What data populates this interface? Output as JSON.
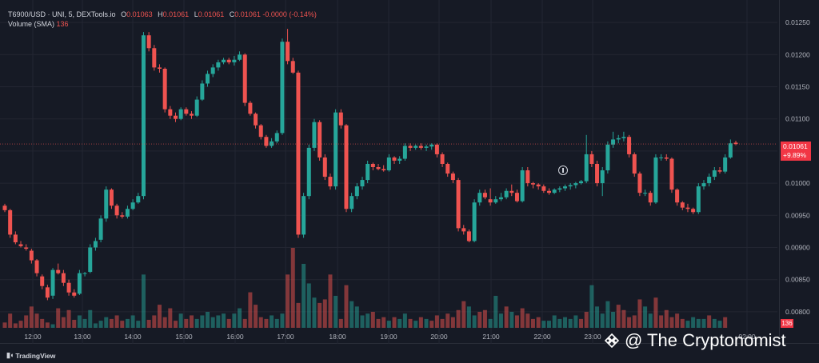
{
  "header": {
    "symbol": "T6900/USD · UNI, 5, DEXTools.io",
    "open_label": "O",
    "open": "0.01063",
    "high_label": "H",
    "high": "0.01061",
    "low_label": "L",
    "low": "0.01061",
    "close_label": "C",
    "close": "0.01061",
    "change": "-0.0000 (-0.14%)",
    "volume_label": "Volume (SMA)",
    "volume_value": "136"
  },
  "price_tag": {
    "price": "0.01061",
    "change": "+9.89%"
  },
  "volume_tag": "136",
  "branding": {
    "tradingview": "TradingView",
    "watermark": "@ The Cryptonomist"
  },
  "colors": {
    "background": "#161a25",
    "up": "#26a69a",
    "down": "#ef5350",
    "grid": "#232632",
    "axis_text": "#b2b5be"
  },
  "chart_data": {
    "type": "candlestick",
    "timeframe": "5",
    "x_ticks": [
      "12:00",
      "13:00",
      "14:00",
      "15:00",
      "16:00",
      "17:00",
      "18:00",
      "19:00",
      "20:00",
      "21:00",
      "22:00",
      "23:00",
      "02:00"
    ],
    "y_ticks": [
      "0.01250",
      "0.01200",
      "0.01150",
      "0.01100",
      "0.01050",
      "0.01000",
      "0.00950",
      "0.00900",
      "0.00850",
      "0.00800"
    ],
    "ylim": [
      0.00775,
      0.01275
    ],
    "last_price": 0.01061,
    "candles": [
      [
        0.00965,
        0.00968,
        0.00955,
        0.00958
      ],
      [
        0.00958,
        0.0096,
        0.00915,
        0.0092
      ],
      [
        0.0092,
        0.00925,
        0.00905,
        0.00908
      ],
      [
        0.00905,
        0.0091,
        0.009,
        0.00902
      ],
      [
        0.009,
        0.00905,
        0.00895,
        0.00898
      ],
      [
        0.00895,
        0.00898,
        0.00875,
        0.0088
      ],
      [
        0.0088,
        0.00882,
        0.00855,
        0.0086
      ],
      [
        0.00855,
        0.00858,
        0.00835,
        0.0084
      ],
      [
        0.00838,
        0.00842,
        0.00818,
        0.00822
      ],
      [
        0.00825,
        0.00868,
        0.0082,
        0.00865
      ],
      [
        0.00865,
        0.00875,
        0.00858,
        0.0086
      ],
      [
        0.0086,
        0.00865,
        0.0084,
        0.00845
      ],
      [
        0.00845,
        0.0085,
        0.00825,
        0.0083
      ],
      [
        0.0083,
        0.00835,
        0.00822,
        0.00825
      ],
      [
        0.00828,
        0.00865,
        0.00826,
        0.0086
      ],
      [
        0.0086,
        0.00862,
        0.00855,
        0.0086
      ],
      [
        0.00862,
        0.00905,
        0.0086,
        0.009
      ],
      [
        0.009,
        0.00915,
        0.00895,
        0.0091
      ],
      [
        0.00912,
        0.0095,
        0.00908,
        0.00945
      ],
      [
        0.00945,
        0.00995,
        0.0094,
        0.0099
      ],
      [
        0.0099,
        0.00992,
        0.0096,
        0.00965
      ],
      [
        0.00965,
        0.00968,
        0.00945,
        0.0095
      ],
      [
        0.0095,
        0.00955,
        0.00945,
        0.00948
      ],
      [
        0.00948,
        0.00965,
        0.00945,
        0.0096
      ],
      [
        0.0096,
        0.00975,
        0.00958,
        0.0097
      ],
      [
        0.0097,
        0.00985,
        0.00968,
        0.0098
      ],
      [
        0.0098,
        0.01235,
        0.00975,
        0.0123
      ],
      [
        0.0123,
        0.01235,
        0.01205,
        0.0121
      ],
      [
        0.0121,
        0.01215,
        0.01175,
        0.0118
      ],
      [
        0.0118,
        0.01185,
        0.01172,
        0.01178
      ],
      [
        0.01178,
        0.0118,
        0.0111,
        0.01115
      ],
      [
        0.01115,
        0.0112,
        0.011,
        0.01105
      ],
      [
        0.01105,
        0.0111,
        0.01095,
        0.011
      ],
      [
        0.011,
        0.01118,
        0.01098,
        0.01115
      ],
      [
        0.01115,
        0.01118,
        0.01105,
        0.01108
      ],
      [
        0.01108,
        0.01112,
        0.011,
        0.01105
      ],
      [
        0.01105,
        0.01135,
        0.01103,
        0.0113
      ],
      [
        0.0113,
        0.0116,
        0.01128,
        0.01155
      ],
      [
        0.01155,
        0.01175,
        0.0115,
        0.0117
      ],
      [
        0.0117,
        0.01185,
        0.01165,
        0.0118
      ],
      [
        0.0118,
        0.01192,
        0.01175,
        0.01188
      ],
      [
        0.01188,
        0.01195,
        0.01185,
        0.01192
      ],
      [
        0.01192,
        0.01195,
        0.01185,
        0.01188
      ],
      [
        0.01188,
        0.01198,
        0.01183,
        0.01192
      ],
      [
        0.01192,
        0.01205,
        0.0119,
        0.012
      ],
      [
        0.012,
        0.01202,
        0.0112,
        0.01125
      ],
      [
        0.01125,
        0.01128,
        0.01105,
        0.01108
      ],
      [
        0.01108,
        0.0111,
        0.01085,
        0.0109
      ],
      [
        0.0109,
        0.01092,
        0.01068,
        0.01072
      ],
      [
        0.01072,
        0.01075,
        0.01055,
        0.01058
      ],
      [
        0.01058,
        0.0107,
        0.01055,
        0.01065
      ],
      [
        0.01065,
        0.01082,
        0.01062,
        0.01078
      ],
      [
        0.01078,
        0.01225,
        0.01075,
        0.0122
      ],
      [
        0.0122,
        0.0124,
        0.01185,
        0.0119
      ],
      [
        0.0119,
        0.01195,
        0.0117,
        0.01172
      ],
      [
        0.01172,
        0.01175,
        0.00915,
        0.0092
      ],
      [
        0.0092,
        0.00985,
        0.00915,
        0.0098
      ],
      [
        0.0098,
        0.0106,
        0.00975,
        0.01055
      ],
      [
        0.01055,
        0.011,
        0.0105,
        0.01095
      ],
      [
        0.01095,
        0.01098,
        0.01035,
        0.0104
      ],
      [
        0.0104,
        0.01045,
        0.01005,
        0.0101
      ],
      [
        0.0101,
        0.01015,
        0.0099,
        0.00995
      ],
      [
        0.00995,
        0.01115,
        0.0099,
        0.0111
      ],
      [
        0.0111,
        0.01115,
        0.01085,
        0.0109
      ],
      [
        0.0109,
        0.01092,
        0.00955,
        0.0096
      ],
      [
        0.0096,
        0.00985,
        0.00955,
        0.0098
      ],
      [
        0.0098,
        0.01,
        0.00975,
        0.00995
      ],
      [
        0.00995,
        0.0101,
        0.0099,
        0.01005
      ],
      [
        0.01005,
        0.01035,
        0.01,
        0.0103
      ],
      [
        0.0103,
        0.01032,
        0.0102,
        0.01025
      ],
      [
        0.01025,
        0.0103,
        0.0102,
        0.01022
      ],
      [
        0.01022,
        0.01028,
        0.01018,
        0.0102
      ],
      [
        0.0102,
        0.01045,
        0.01018,
        0.0104
      ],
      [
        0.0104,
        0.01042,
        0.0103,
        0.01035
      ],
      [
        0.01035,
        0.01042,
        0.0103,
        0.01038
      ],
      [
        0.01038,
        0.01062,
        0.01035,
        0.01058
      ],
      [
        0.01058,
        0.01062,
        0.0105,
        0.01055
      ],
      [
        0.01055,
        0.0106,
        0.01052,
        0.01058
      ],
      [
        0.01058,
        0.01062,
        0.01052,
        0.01055
      ],
      [
        0.01055,
        0.0106,
        0.0105,
        0.01057
      ],
      [
        0.01057,
        0.01062,
        0.01052,
        0.0106
      ],
      [
        0.0106,
        0.01062,
        0.0104,
        0.01045
      ],
      [
        0.01045,
        0.01048,
        0.01025,
        0.0103
      ],
      [
        0.0103,
        0.01032,
        0.0101,
        0.01015
      ],
      [
        0.01015,
        0.01018,
        0.01,
        0.01005
      ],
      [
        0.01005,
        0.01008,
        0.00925,
        0.0093
      ],
      [
        0.0093,
        0.00935,
        0.0092,
        0.00925
      ],
      [
        0.00925,
        0.00928,
        0.00908,
        0.0091
      ],
      [
        0.0091,
        0.00975,
        0.00908,
        0.0097
      ],
      [
        0.0097,
        0.0099,
        0.00965,
        0.00985
      ],
      [
        0.00985,
        0.0099,
        0.00975,
        0.00978
      ],
      [
        0.00975,
        0.00992,
        0.00965,
        0.0097
      ],
      [
        0.0097,
        0.0098,
        0.00968,
        0.00975
      ],
      [
        0.00975,
        0.00985,
        0.00972,
        0.00978
      ],
      [
        0.00978,
        0.00992,
        0.00975,
        0.00988
      ],
      [
        0.00988,
        0.00998,
        0.0098,
        0.00985
      ],
      [
        0.00985,
        0.0099,
        0.0097,
        0.00972
      ],
      [
        0.00972,
        0.01025,
        0.0097,
        0.0102
      ],
      [
        0.0102,
        0.01025,
        0.00995,
        0.01
      ],
      [
        0.01,
        0.01002,
        0.00992,
        0.00998
      ],
      [
        0.00998,
        0.01,
        0.0099,
        0.00995
      ],
      [
        0.00995,
        0.00998,
        0.00985,
        0.00988
      ],
      [
        0.00988,
        0.00992,
        0.00982,
        0.00985
      ],
      [
        0.00985,
        0.00992,
        0.00983,
        0.0099
      ],
      [
        0.0099,
        0.00995,
        0.00986,
        0.00992
      ],
      [
        0.00992,
        0.00998,
        0.00988,
        0.00995
      ],
      [
        0.00995,
        0.01,
        0.0099,
        0.00997
      ],
      [
        0.00997,
        0.01002,
        0.00992,
        0.01
      ],
      [
        0.01,
        0.01005,
        0.00998,
        0.01003
      ],
      [
        0.01003,
        0.01075,
        0.01,
        0.01045
      ],
      [
        0.01045,
        0.0105,
        0.01025,
        0.0103
      ],
      [
        0.0103,
        0.01035,
        0.00995,
        0.01
      ],
      [
        0.01,
        0.01025,
        0.0098,
        0.0102
      ],
      [
        0.0102,
        0.01065,
        0.01015,
        0.0106
      ],
      [
        0.0106,
        0.0108,
        0.01055,
        0.01068
      ],
      [
        0.01068,
        0.01075,
        0.01062,
        0.0107
      ],
      [
        0.0107,
        0.0108,
        0.01065,
        0.01072
      ],
      [
        0.01072,
        0.01075,
        0.0104,
        0.01045
      ],
      [
        0.01045,
        0.01048,
        0.0101,
        0.01015
      ],
      [
        0.01015,
        0.01018,
        0.0098,
        0.00985
      ],
      [
        0.00985,
        0.0099,
        0.0098,
        0.00985
      ],
      [
        0.00985,
        0.00988,
        0.00965,
        0.0097
      ],
      [
        0.0097,
        0.01045,
        0.00968,
        0.0104
      ],
      [
        0.0104,
        0.01045,
        0.01035,
        0.0104
      ],
      [
        0.0104,
        0.01045,
        0.01035,
        0.01038
      ],
      [
        0.01038,
        0.0104,
        0.00985,
        0.0099
      ],
      [
        0.0099,
        0.00992,
        0.00965,
        0.0097
      ],
      [
        0.0097,
        0.00972,
        0.00958,
        0.00962
      ],
      [
        0.00962,
        0.00968,
        0.00955,
        0.0096
      ],
      [
        0.0096,
        0.00962,
        0.00952,
        0.00955
      ],
      [
        0.00955,
        0.01,
        0.00952,
        0.00995
      ],
      [
        0.00995,
        0.01005,
        0.0099,
        0.01
      ],
      [
        0.01,
        0.01015,
        0.00995,
        0.0101
      ],
      [
        0.0101,
        0.01025,
        0.01005,
        0.0102
      ],
      [
        0.0102,
        0.01025,
        0.01015,
        0.01018
      ],
      [
        0.01018,
        0.01045,
        0.01015,
        0.0104
      ],
      [
        0.0104,
        0.01068,
        0.01038,
        0.01062
      ],
      [
        0.01063,
        0.01066,
        0.01059,
        0.01061
      ]
    ],
    "volume": [
      6,
      16,
      5,
      8,
      14,
      24,
      16,
      10,
      6,
      4,
      22,
      12,
      20,
      9,
      14,
      10,
      20,
      5,
      8,
      12,
      10,
      14,
      8,
      10,
      14,
      8,
      60,
      9,
      14,
      26,
      12,
      22,
      8,
      16,
      10,
      14,
      10,
      14,
      18,
      12,
      14,
      16,
      10,
      16,
      22,
      10,
      40,
      26,
      12,
      10,
      14,
      10,
      16,
      60,
      90,
      28,
      72,
      50,
      34,
      28,
      32,
      60,
      36,
      10,
      48,
      30,
      24,
      14,
      16,
      18,
      10,
      12,
      8,
      12,
      10,
      16,
      10,
      8,
      12,
      10,
      8,
      14,
      10,
      16,
      12,
      20,
      30,
      24,
      14,
      18,
      20,
      10,
      36,
      16,
      24,
      18,
      14,
      22,
      16,
      10,
      12,
      8,
      8,
      14,
      10,
      12,
      10,
      14,
      10,
      18,
      48,
      24,
      16,
      30,
      18,
      26,
      20,
      12,
      14,
      32,
      24,
      16,
      34,
      14,
      20,
      12,
      16,
      10,
      8,
      12,
      10,
      10,
      14,
      10,
      8,
      12
    ],
    "volume_directions": [
      "down",
      "down",
      "down",
      "down",
      "down",
      "down",
      "down",
      "down",
      "down",
      "up",
      "down",
      "down",
      "down",
      "down",
      "up",
      "up",
      "up",
      "up",
      "up",
      "up",
      "down",
      "down",
      "down",
      "up",
      "up",
      "up",
      "up",
      "down",
      "down",
      "down",
      "down",
      "down",
      "down",
      "up",
      "down",
      "down",
      "up",
      "up",
      "up",
      "up",
      "up",
      "up",
      "down",
      "up",
      "up",
      "down",
      "down",
      "down",
      "down",
      "down",
      "up",
      "up",
      "up",
      "down",
      "down",
      "down",
      "up",
      "up",
      "up",
      "down",
      "down",
      "down",
      "up",
      "down",
      "down",
      "up",
      "up",
      "up",
      "up",
      "down",
      "down",
      "down",
      "up",
      "down",
      "up",
      "up",
      "down",
      "up",
      "down",
      "up",
      "down",
      "down",
      "down",
      "down",
      "down",
      "down",
      "down",
      "up",
      "up",
      "down",
      "down",
      "up",
      "up",
      "up",
      "down",
      "up",
      "down",
      "down",
      "down",
      "down",
      "down",
      "up",
      "up",
      "up",
      "up",
      "up",
      "up",
      "up",
      "down",
      "down",
      "up",
      "up",
      "up",
      "up",
      "up",
      "down",
      "down",
      "down",
      "down",
      "down",
      "up",
      "up",
      "down",
      "down",
      "down",
      "down",
      "down",
      "down",
      "up",
      "up",
      "up",
      "up",
      "down",
      "up",
      "up",
      "down"
    ]
  }
}
